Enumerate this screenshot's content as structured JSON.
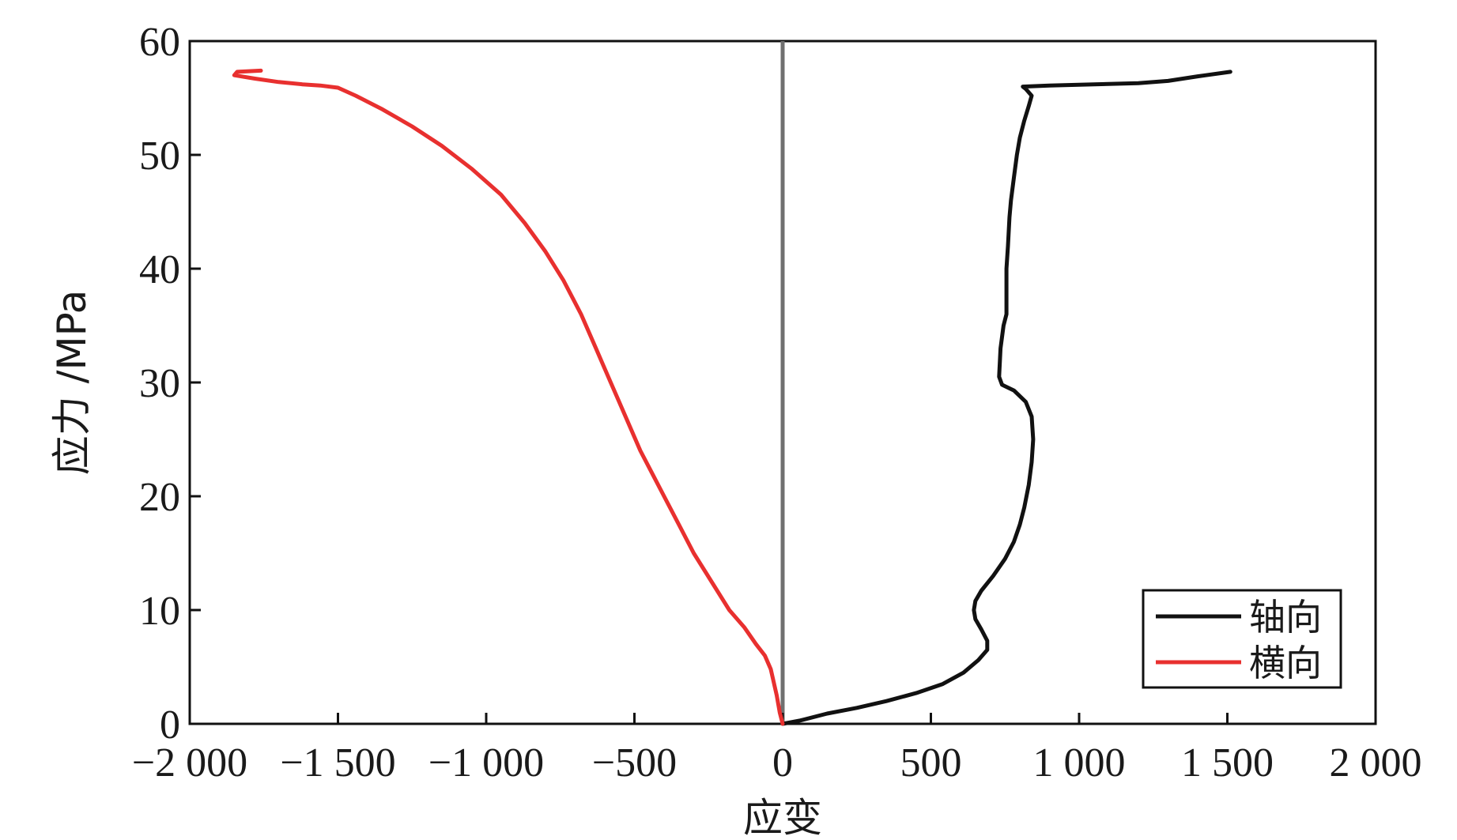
{
  "chart_data": {
    "type": "line",
    "xlabel": "应变",
    "ylabel": "应力 /MPa",
    "xlim": [
      -2000,
      2000
    ],
    "ylim": [
      0,
      60
    ],
    "x_ticks": [
      -2000,
      -1500,
      -1000,
      -500,
      0,
      500,
      1000,
      1500,
      2000
    ],
    "x_tick_labels": [
      "−2 000",
      "−1 500",
      "−1 000",
      "−500",
      "0",
      "500",
      "1 000",
      "1 500",
      "2 000"
    ],
    "y_ticks": [
      0,
      10,
      20,
      30,
      40,
      50,
      60
    ],
    "y_tick_labels": [
      "0",
      "10",
      "20",
      "30",
      "40",
      "50",
      "60"
    ],
    "grid": false,
    "zero_line": true,
    "legend_position": "bottom-right",
    "series": [
      {
        "name": "轴向",
        "color": "#111111",
        "points": [
          [
            0,
            0
          ],
          [
            60,
            0.3
          ],
          [
            150,
            0.9
          ],
          [
            250,
            1.4
          ],
          [
            350,
            2.0
          ],
          [
            450,
            2.7
          ],
          [
            540,
            3.5
          ],
          [
            610,
            4.5
          ],
          [
            660,
            5.6
          ],
          [
            690,
            6.5
          ],
          [
            690,
            7.3
          ],
          [
            670,
            8.3
          ],
          [
            650,
            9.2
          ],
          [
            645,
            10.0
          ],
          [
            650,
            10.8
          ],
          [
            670,
            11.7
          ],
          [
            710,
            13.0
          ],
          [
            750,
            14.5
          ],
          [
            780,
            16.0
          ],
          [
            800,
            17.5
          ],
          [
            815,
            19.0
          ],
          [
            830,
            21.0
          ],
          [
            840,
            23.0
          ],
          [
            845,
            25.0
          ],
          [
            840,
            27.0
          ],
          [
            820,
            28.3
          ],
          [
            780,
            29.3
          ],
          [
            740,
            29.8
          ],
          [
            730,
            30.5
          ],
          [
            735,
            33.0
          ],
          [
            745,
            35.0
          ],
          [
            755,
            36.0
          ],
          [
            755,
            38.0
          ],
          [
            755,
            40.0
          ],
          [
            760,
            42.0
          ],
          [
            765,
            44.5
          ],
          [
            770,
            46.0
          ],
          [
            780,
            48.0
          ],
          [
            790,
            50.0
          ],
          [
            800,
            51.5
          ],
          [
            815,
            53.0
          ],
          [
            830,
            54.3
          ],
          [
            840,
            55.2
          ],
          [
            820,
            55.8
          ],
          [
            810,
            56.0
          ],
          [
            900,
            56.1
          ],
          [
            1050,
            56.2
          ],
          [
            1200,
            56.3
          ],
          [
            1300,
            56.5
          ],
          [
            1400,
            56.9
          ],
          [
            1510,
            57.3
          ]
        ]
      },
      {
        "name": "横向",
        "color": "#e8302f",
        "points": [
          [
            0,
            0
          ],
          [
            -10,
            1.0
          ],
          [
            -20,
            2.5
          ],
          [
            -40,
            4.8
          ],
          [
            -60,
            6.0
          ],
          [
            -90,
            7.0
          ],
          [
            -130,
            8.5
          ],
          [
            -180,
            10.0
          ],
          [
            -240,
            12.5
          ],
          [
            -300,
            15.0
          ],
          [
            -350,
            17.5
          ],
          [
            -400,
            20.0
          ],
          [
            -440,
            22.0
          ],
          [
            -480,
            24.0
          ],
          [
            -530,
            27.0
          ],
          [
            -580,
            30.0
          ],
          [
            -630,
            33.0
          ],
          [
            -680,
            36.0
          ],
          [
            -740,
            39.0
          ],
          [
            -800,
            41.5
          ],
          [
            -870,
            44.0
          ],
          [
            -950,
            46.5
          ],
          [
            -1050,
            48.8
          ],
          [
            -1150,
            50.8
          ],
          [
            -1250,
            52.5
          ],
          [
            -1350,
            54.0
          ],
          [
            -1440,
            55.2
          ],
          [
            -1500,
            55.9
          ],
          [
            -1560,
            56.1
          ],
          [
            -1620,
            56.2
          ],
          [
            -1700,
            56.4
          ],
          [
            -1780,
            56.7
          ],
          [
            -1850,
            57.0
          ],
          [
            -1840,
            57.3
          ],
          [
            -1760,
            57.4
          ]
        ]
      }
    ]
  }
}
